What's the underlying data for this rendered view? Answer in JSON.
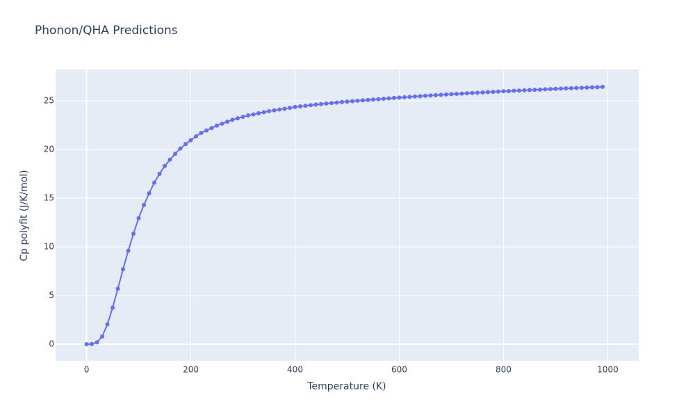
{
  "chart_data": {
    "type": "line",
    "title": "Phonon/QHA Predictions",
    "x_label": "Temperature (K)",
    "y_label": "Cp polyfit (J/K/mol)",
    "x": [
      0,
      10,
      20,
      30,
      40,
      50,
      60,
      70,
      80,
      90,
      100,
      110,
      120,
      130,
      140,
      150,
      160,
      170,
      180,
      190,
      200,
      210,
      220,
      230,
      240,
      250,
      260,
      270,
      280,
      290,
      300,
      310,
      320,
      330,
      340,
      350,
      360,
      370,
      380,
      390,
      400,
      410,
      420,
      430,
      440,
      450,
      460,
      470,
      480,
      490,
      500,
      510,
      520,
      530,
      540,
      550,
      560,
      570,
      580,
      590,
      600,
      610,
      620,
      630,
      640,
      650,
      660,
      670,
      680,
      690,
      700,
      710,
      720,
      730,
      740,
      750,
      760,
      770,
      780,
      790,
      800,
      810,
      820,
      830,
      840,
      850,
      860,
      870,
      880,
      890,
      900,
      910,
      920,
      930,
      940,
      950,
      960,
      970,
      980,
      990
    ],
    "series": [
      {
        "name": "Cp polyfit",
        "color": "#636efa",
        "values": [
          0,
          0.02,
          0.2,
          0.8,
          2.05,
          3.75,
          5.7,
          7.7,
          9.6,
          11.35,
          12.95,
          14.3,
          15.5,
          16.6,
          17.5,
          18.3,
          18.95,
          19.55,
          20.1,
          20.55,
          20.95,
          21.35,
          21.7,
          21.95,
          22.2,
          22.45,
          22.65,
          22.85,
          23.05,
          23.2,
          23.35,
          23.5,
          23.6,
          23.72,
          23.83,
          23.93,
          24.02,
          24.1,
          24.18,
          24.27,
          24.36,
          24.43,
          24.49,
          24.55,
          24.61,
          24.66,
          24.72,
          24.77,
          24.82,
          24.87,
          24.92,
          24.96,
          25.01,
          25.05,
          25.09,
          25.13,
          25.17,
          25.21,
          25.25,
          25.29,
          25.33,
          25.37,
          25.4,
          25.44,
          25.47,
          25.51,
          25.54,
          25.58,
          25.61,
          25.65,
          25.68,
          25.71,
          25.74,
          25.77,
          25.8,
          25.83,
          25.86,
          25.89,
          25.92,
          25.95,
          25.98,
          26.0,
          26.03,
          26.05,
          26.08,
          26.1,
          26.13,
          26.15,
          26.18,
          26.2,
          26.23,
          26.25,
          26.27,
          26.29,
          26.32,
          26.34,
          26.36,
          26.38,
          26.4,
          26.43
        ]
      }
    ],
    "xlim": [
      -59.4,
      1059.4
    ],
    "ylim": [
      -1.71,
      28.21
    ],
    "xticks": [
      0,
      200,
      400,
      600,
      800,
      1000
    ],
    "yticks": [
      0,
      5,
      10,
      15,
      20,
      25
    ],
    "grid": true
  }
}
